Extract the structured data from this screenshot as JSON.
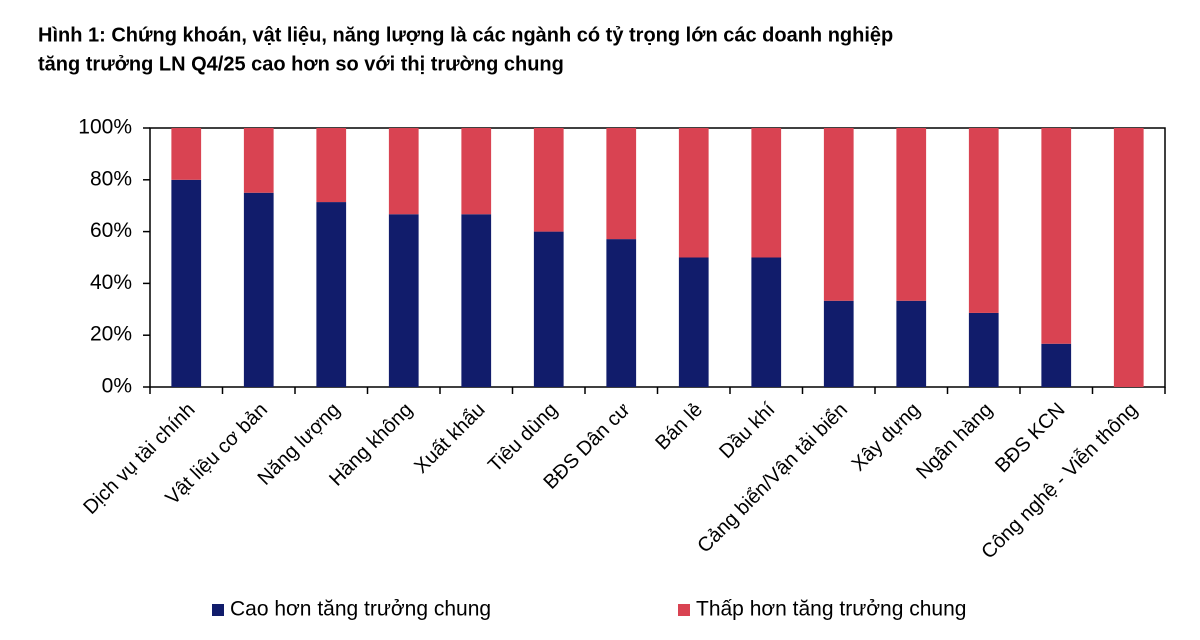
{
  "chart_data": {
    "type": "stacked_bar",
    "title": [
      "Hình 1: Chứng khoán, vật liệu, năng lượng là các ngành có tỷ trọng lớn các doanh nghiệp",
      "tăng trưởng LN Q4/25 cao hơn so với thị trường chung"
    ],
    "categories": [
      "Dịch vụ tài chính",
      "Vật liệu cơ bản",
      "Năng lượng",
      "Hàng không",
      "Xuất khẩu",
      "Tiêu dùng",
      "BĐS Dân cư",
      "Bán lẻ",
      "Dầu khí",
      "Cảng biển/Vận tải biển",
      "Xây dựng",
      "Ngân hàng",
      "BĐS KCN",
      "Công nghệ - Viễn thông"
    ],
    "series": [
      {
        "name": "Cao hơn tăng trưởng chung",
        "color": "#111c6b",
        "values": [
          80,
          75,
          71.4,
          66.7,
          66.7,
          60,
          57.1,
          50,
          50,
          33.3,
          33.3,
          28.6,
          16.7,
          0
        ]
      },
      {
        "name": "Thấp hơn tăng trưởng chung",
        "color": "#d94352",
        "values": [
          20,
          25,
          28.6,
          33.3,
          33.3,
          40,
          42.9,
          50,
          50,
          66.7,
          66.7,
          71.4,
          83.3,
          100
        ]
      }
    ],
    "ylim": [
      0,
      100
    ],
    "yticks": [
      {
        "value": 0,
        "label": "0%"
      },
      {
        "value": 20,
        "label": "20%"
      },
      {
        "value": 40,
        "label": "40%"
      },
      {
        "value": 60,
        "label": "60%"
      },
      {
        "value": 80,
        "label": "80%"
      },
      {
        "value": 100,
        "label": "100%"
      }
    ],
    "legend": "bottom"
  }
}
